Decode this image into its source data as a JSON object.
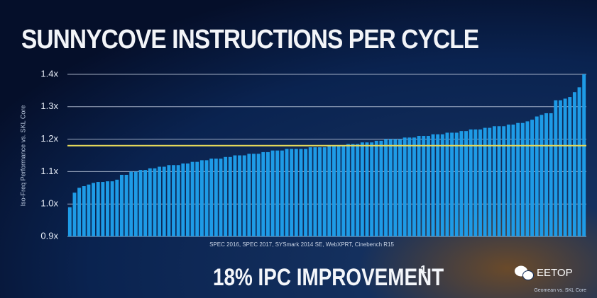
{
  "chart_data": {
    "type": "bar",
    "title": "SUNNYCOVE INSTRUCTIONS PER CYCLE",
    "y_label": "Iso-Freq Performance vs. SKL Core",
    "x_label": "SPEC 2016, SPEC 2017, SYSmark 2014 SE, WebXPRT, Cinebench R15",
    "headline": "18% IPC IMPROVEMENT",
    "headline_note": "1",
    "footnote": "Geomean vs. SKL Core",
    "watermark": "EETOP",
    "color": "#1e9be6",
    "reference_line": {
      "value": 1.18,
      "color": "#e6d95a"
    },
    "ylim": [
      0.9,
      1.4
    ],
    "yticks": [
      {
        "value": 0.9,
        "label": "0.9x"
      },
      {
        "value": 1.0,
        "label": "1.0x"
      },
      {
        "value": 1.1,
        "label": "1.1x"
      },
      {
        "value": 1.2,
        "label": "1.2x"
      },
      {
        "value": 1.3,
        "label": "1.3x"
      },
      {
        "value": 1.4,
        "label": "1.4x"
      }
    ],
    "grid": true,
    "values": [
      0.99,
      1.035,
      1.05,
      1.055,
      1.06,
      1.065,
      1.068,
      1.068,
      1.07,
      1.07,
      1.075,
      1.09,
      1.09,
      1.1,
      1.1,
      1.105,
      1.105,
      1.11,
      1.11,
      1.115,
      1.115,
      1.12,
      1.12,
      1.12,
      1.125,
      1.125,
      1.13,
      1.13,
      1.135,
      1.135,
      1.14,
      1.14,
      1.14,
      1.145,
      1.145,
      1.15,
      1.15,
      1.15,
      1.155,
      1.155,
      1.155,
      1.16,
      1.16,
      1.165,
      1.165,
      1.165,
      1.17,
      1.17,
      1.17,
      1.17,
      1.17,
      1.175,
      1.175,
      1.175,
      1.175,
      1.18,
      1.18,
      1.18,
      1.18,
      1.185,
      1.185,
      1.185,
      1.19,
      1.19,
      1.19,
      1.195,
      1.195,
      1.2,
      1.2,
      1.2,
      1.2,
      1.205,
      1.205,
      1.205,
      1.21,
      1.21,
      1.21,
      1.215,
      1.215,
      1.215,
      1.22,
      1.22,
      1.22,
      1.225,
      1.225,
      1.23,
      1.23,
      1.23,
      1.235,
      1.235,
      1.24,
      1.24,
      1.24,
      1.245,
      1.245,
      1.25,
      1.25,
      1.255,
      1.26,
      1.27,
      1.275,
      1.28,
      1.28,
      1.32,
      1.32,
      1.325,
      1.33,
      1.345,
      1.36,
      1.4
    ]
  }
}
